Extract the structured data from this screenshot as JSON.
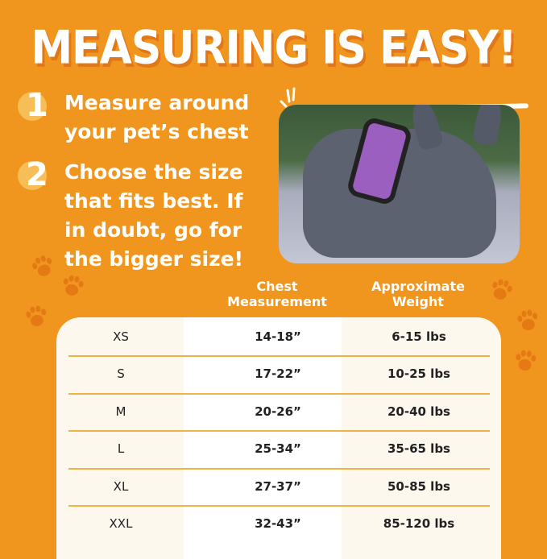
{
  "title": "MEASURING IS EASY!",
  "steps": [
    {
      "number": "1",
      "text": "Measure around your pet’s chest"
    },
    {
      "number": "2",
      "text": "Choose the size that fits best. If in doubt, go for the bigger size!"
    }
  ],
  "table": {
    "headers": [
      "",
      "Chest Measurement",
      "Approximate Weight"
    ],
    "rows": [
      {
        "size": "XS",
        "chest": "14-18”",
        "weight": "6-15 lbs"
      },
      {
        "size": "S",
        "chest": "17-22”",
        "weight": "10-25 lbs"
      },
      {
        "size": "M",
        "chest": "20-26”",
        "weight": "20-40 lbs"
      },
      {
        "size": "L",
        "chest": "25-34”",
        "weight": "35-65 lbs"
      },
      {
        "size": "XL",
        "chest": "27-37”",
        "weight": "50-85 lbs"
      },
      {
        "size": "XXL",
        "chest": "32-43”",
        "weight": "85-120 lbs"
      }
    ]
  },
  "colors": {
    "background": "#F0961E",
    "accent": "#F0B347",
    "panel": "#FDF8EE"
  },
  "icons": [
    "paw-print-icon",
    "sparkle-icon"
  ]
}
